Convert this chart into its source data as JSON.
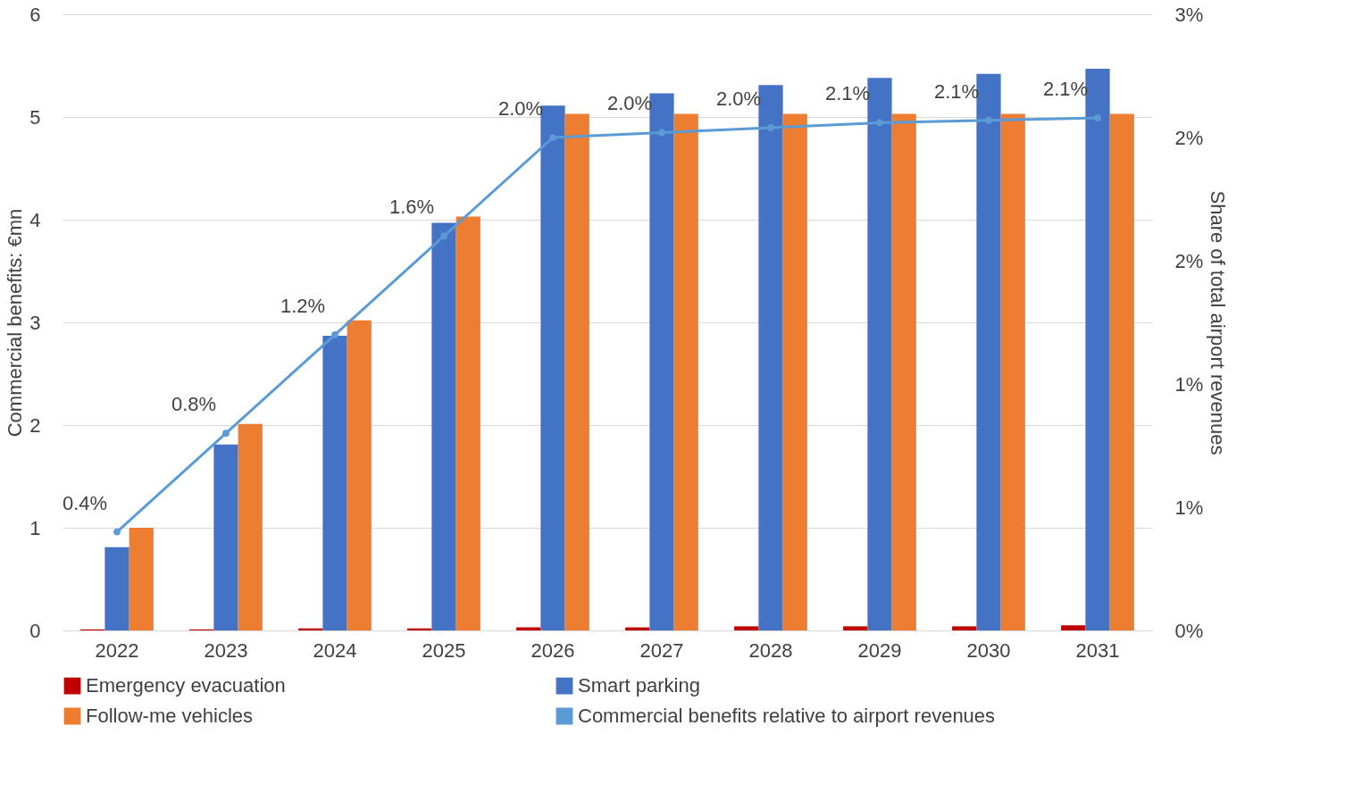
{
  "chart_data": {
    "type": "bar",
    "categories": [
      "2022",
      "2023",
      "2024",
      "2025",
      "2026",
      "2027",
      "2028",
      "2029",
      "2030",
      "2031"
    ],
    "series": [
      {
        "name": "Emergency evacuation",
        "color": "#c00000",
        "values": [
          0.01,
          0.01,
          0.02,
          0.02,
          0.03,
          0.03,
          0.04,
          0.04,
          0.04,
          0.05
        ]
      },
      {
        "name": "Smart parking",
        "color": "#4472c4",
        "values": [
          0.81,
          1.81,
          2.87,
          3.97,
          5.11,
          5.23,
          5.31,
          5.38,
          5.42,
          5.47
        ]
      },
      {
        "name": "Follow-me vehicles",
        "color": "#ed7d31",
        "values": [
          1.0,
          2.01,
          3.02,
          4.03,
          5.03,
          5.03,
          5.03,
          5.03,
          5.03,
          5.03
        ]
      },
      {
        "name": "Commercial benefits relative to airport revenues",
        "type": "line",
        "axis": "y2",
        "color": "#5b9bd5",
        "values": [
          0.4,
          0.8,
          1.2,
          1.6,
          2.0,
          2.02,
          2.04,
          2.06,
          2.07,
          2.08
        ],
        "value_labels": [
          "0.4%",
          "0.8%",
          "1.2%",
          "1.6%",
          "2.0%",
          "2.0%",
          "2.0%",
          "2.1%",
          "2.1%",
          "2.1%"
        ]
      }
    ],
    "ylabel": "Commercial benefits: €mn",
    "y2label": "Share of total airport revenues",
    "ylim": [
      0,
      6
    ],
    "yticks": [
      0,
      1,
      2,
      3,
      4,
      5,
      6
    ],
    "y2lim": [
      0,
      2.5
    ],
    "y2ticks": [
      {
        "value": 0,
        "label": "0%"
      },
      {
        "value": 0.5,
        "label": "1%"
      },
      {
        "value": 1,
        "label": "1%"
      },
      {
        "value": 1.5,
        "label": "2%"
      },
      {
        "value": 2,
        "label": "2%"
      },
      {
        "value": 2.5,
        "label": "3%"
      }
    ],
    "grid": "y",
    "legend": "bottom",
    "marker": "circle"
  }
}
